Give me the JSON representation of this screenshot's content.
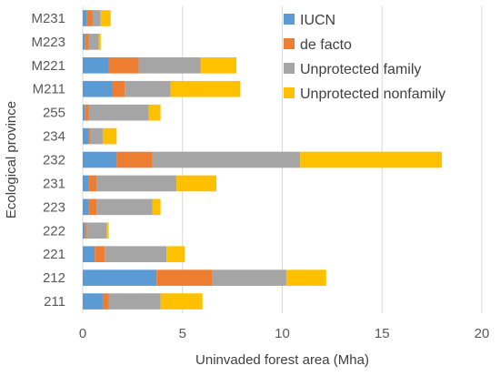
{
  "chart_data": {
    "type": "bar",
    "orientation": "horizontal",
    "stacked": true,
    "xlabel": "Uninvaded forest area (Mha)",
    "ylabel": "Ecological province",
    "xlim": [
      0,
      20
    ],
    "xticks": [
      0,
      5,
      10,
      15,
      20
    ],
    "grid": "vertical",
    "legend_position": "top-right",
    "categories": [
      "M231",
      "M223",
      "M221",
      "M211",
      "255",
      "234",
      "232",
      "231",
      "223",
      "222",
      "221",
      "212",
      "211"
    ],
    "series": [
      {
        "name": "IUCN",
        "color": "#5B9BD5",
        "values": [
          0.2,
          0.1,
          1.3,
          1.5,
          0.1,
          0.3,
          1.7,
          0.3,
          0.3,
          0.1,
          0.6,
          3.7,
          1.0
        ]
      },
      {
        "name": "de facto",
        "color": "#ED7D31",
        "values": [
          0.3,
          0.2,
          1.5,
          0.6,
          0.2,
          0.1,
          1.8,
          0.4,
          0.4,
          0.1,
          0.5,
          2.8,
          0.3
        ]
      },
      {
        "name": "Unprotected family",
        "color": "#A5A5A5",
        "values": [
          0.4,
          0.5,
          3.1,
          2.3,
          3.0,
          0.6,
          7.4,
          4.0,
          2.8,
          1.0,
          3.1,
          3.7,
          2.6
        ]
      },
      {
        "name": "Unprotected nonfamily",
        "color": "#FFC000",
        "values": [
          0.5,
          0.1,
          1.8,
          3.5,
          0.6,
          0.7,
          7.1,
          2.0,
          0.4,
          0.1,
          0.9,
          2.0,
          2.1
        ]
      }
    ]
  }
}
